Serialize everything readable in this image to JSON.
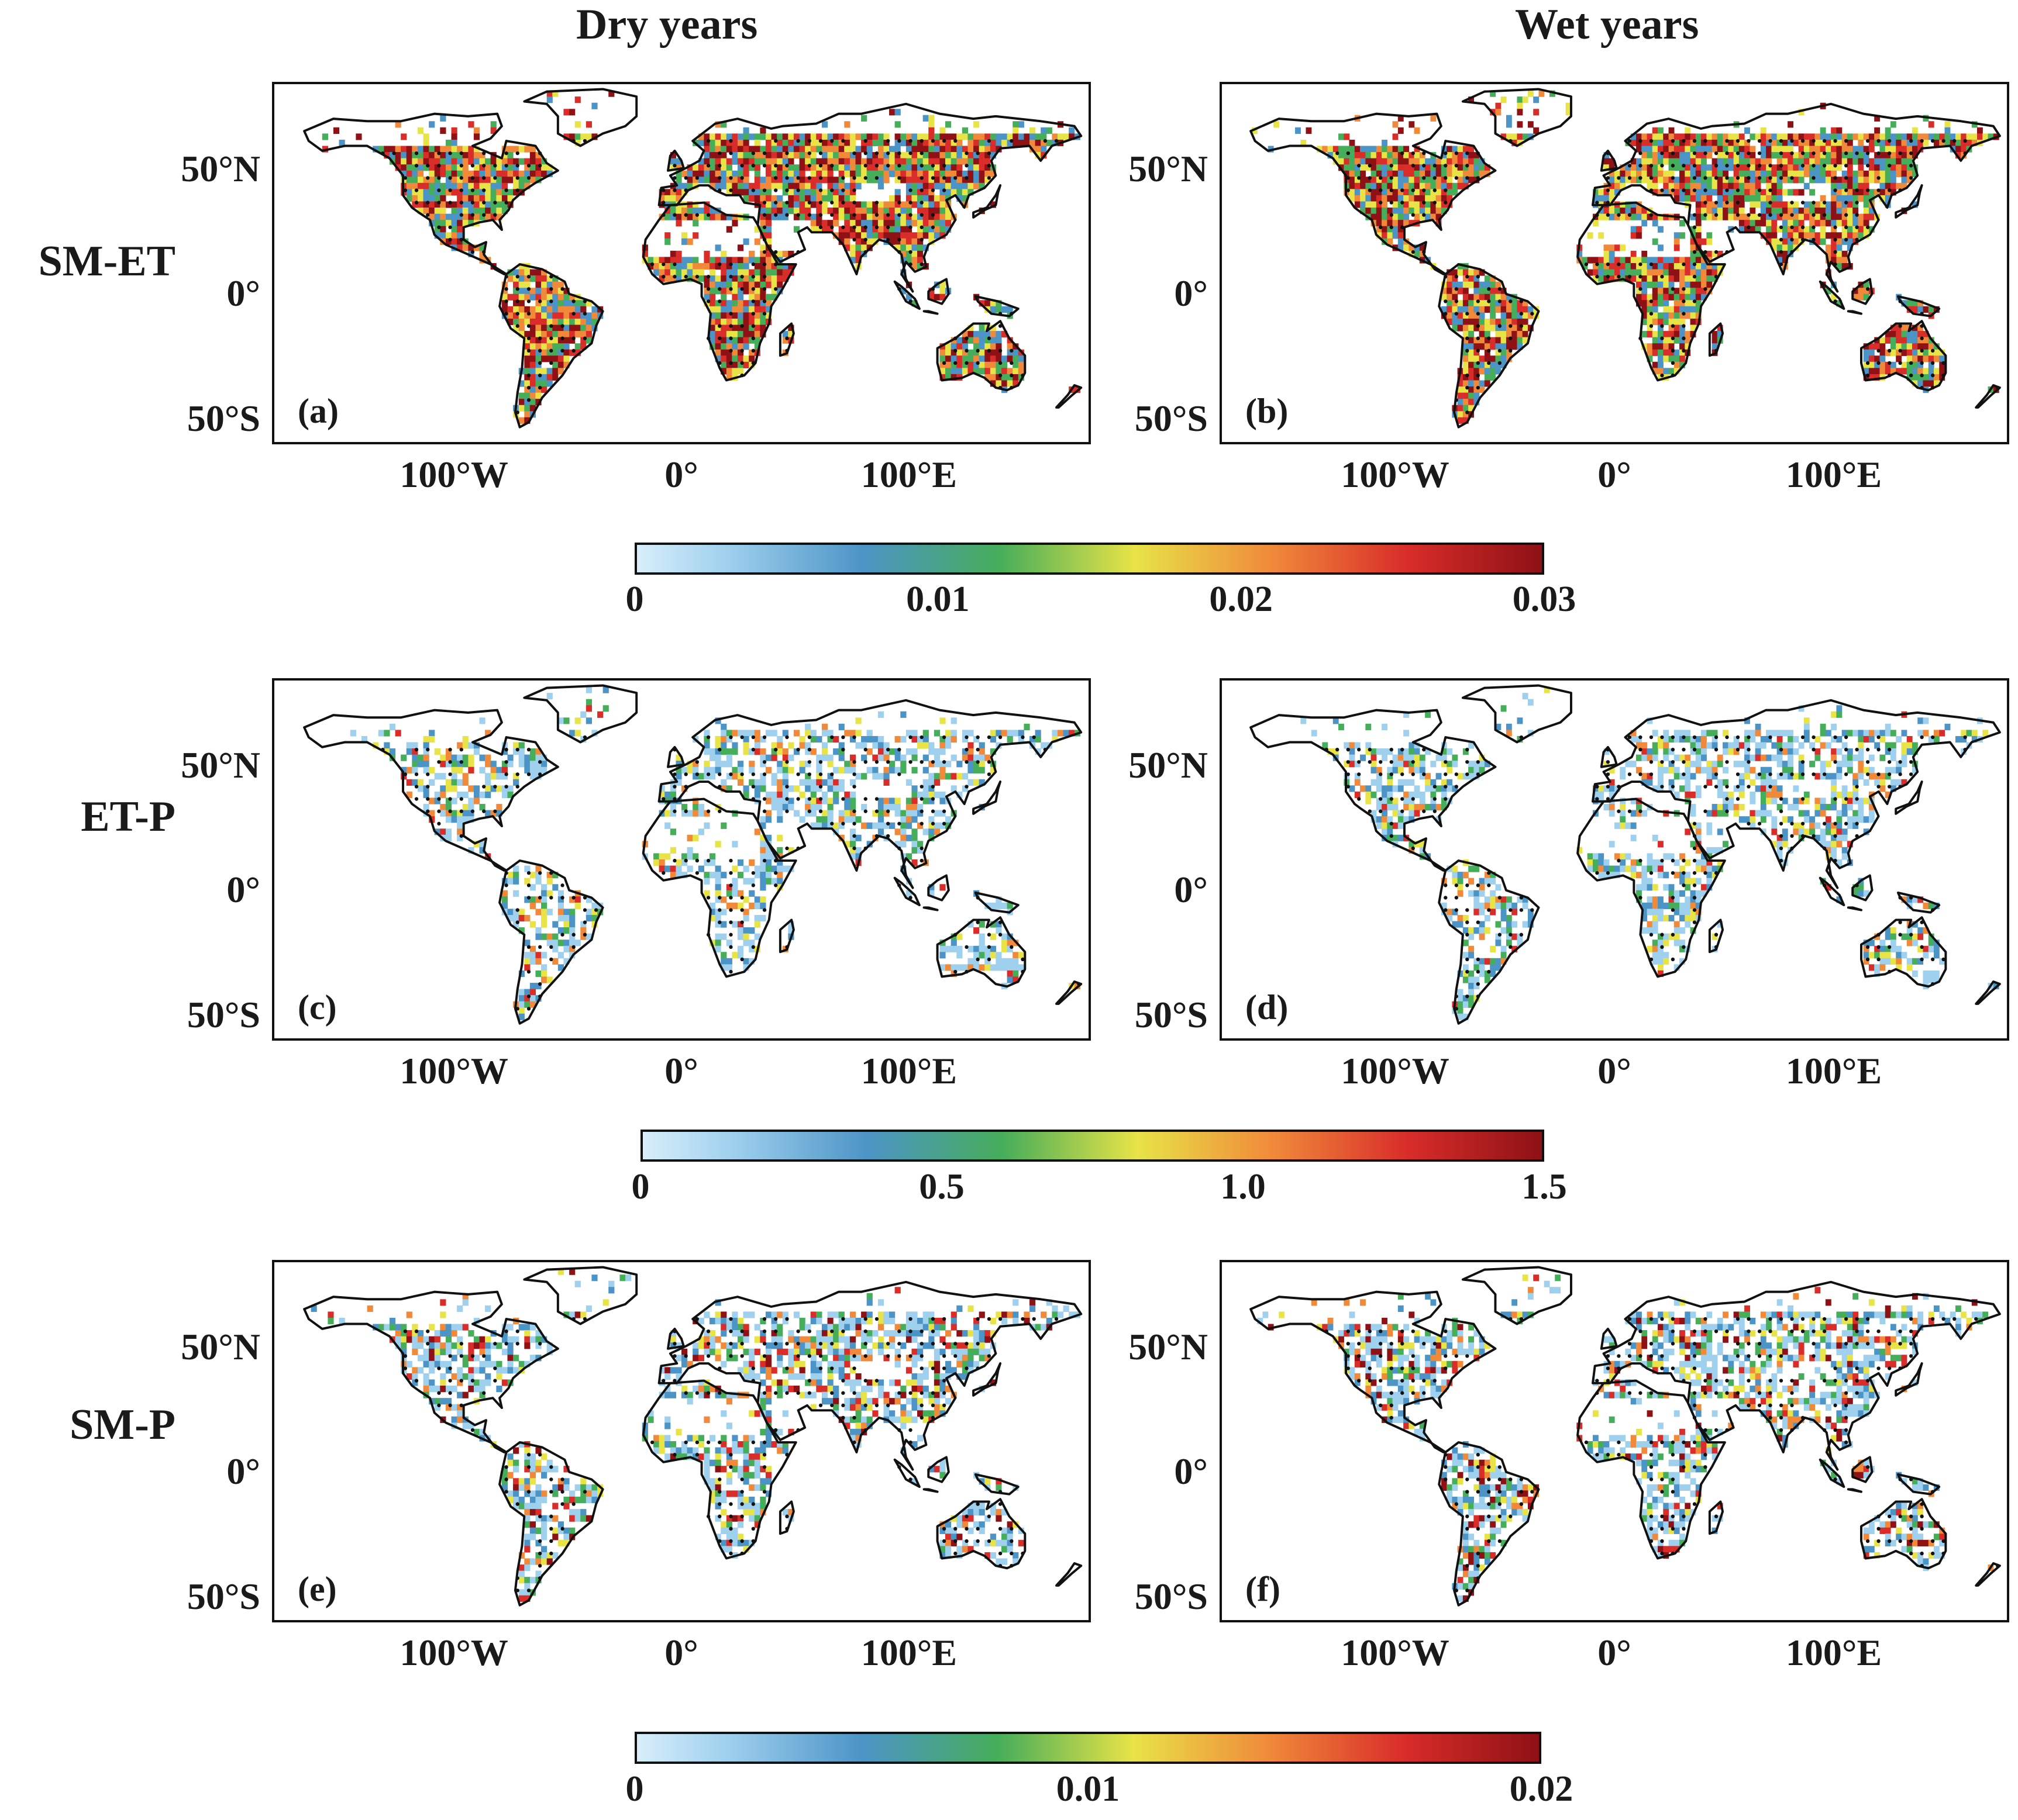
{
  "columns": [
    "Dry years",
    "Wet years"
  ],
  "rows": [
    {
      "label": "SM-ET",
      "panels": [
        "(a)",
        "(b)"
      ],
      "colorbar_ticks": [
        "0",
        "0.01",
        "0.02",
        "0.03"
      ],
      "palette": "warm",
      "land_fill": 0.95
    },
    {
      "label": "ET-P",
      "panels": [
        "(c)",
        "(d)"
      ],
      "colorbar_ticks": [
        "0",
        "0.5",
        "1.0",
        "1.5"
      ],
      "palette": "cool",
      "land_fill": 0.55
    },
    {
      "label": "SM-P",
      "panels": [
        "(e)",
        "(f)"
      ],
      "colorbar_ticks": [
        "0",
        "0.01",
        "0.02"
      ],
      "palette": "mixed",
      "land_fill": 0.6
    }
  ],
  "lat_ticks": [
    "50°N",
    "0°",
    "50°S"
  ],
  "lon_ticks": [
    "100°W",
    "0°",
    "100°E"
  ],
  "colormap": [
    "#d8eefa",
    "#9fd0ee",
    "#4c94c6",
    "#46ad5a",
    "#e8e347",
    "#f08a3a",
    "#d92d2a",
    "#8e1115"
  ]
}
